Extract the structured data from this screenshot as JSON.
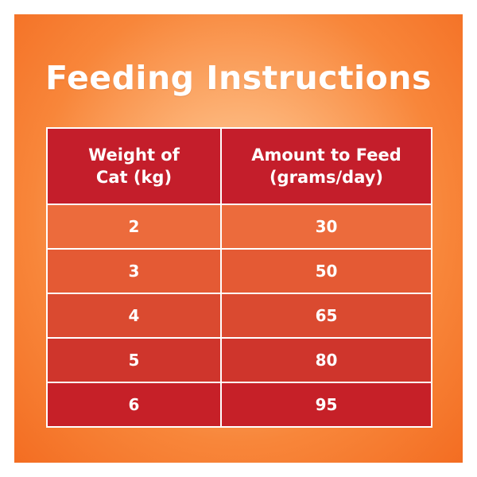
{
  "title": "Feeding Instructions",
  "table": {
    "headers": [
      {
        "line1": "Weight of",
        "line2": "Cat (kg)"
      },
      {
        "line1": "Amount to Feed",
        "line2": "(grams/day)"
      }
    ],
    "rows": [
      {
        "weight": "2",
        "amount": "30",
        "color": "#ec6b3c"
      },
      {
        "weight": "3",
        "amount": "50",
        "color": "#e45a34"
      },
      {
        "weight": "4",
        "amount": "65",
        "color": "#da4a30"
      },
      {
        "weight": "5",
        "amount": "80",
        "color": "#cf352c"
      },
      {
        "weight": "6",
        "amount": "95",
        "color": "#c62028"
      }
    ]
  },
  "colors": {
    "header_bg": "#c41e2b",
    "panel_edge": "#f36d22",
    "panel_center": "#ffd3a6",
    "text": "#ffffff"
  }
}
